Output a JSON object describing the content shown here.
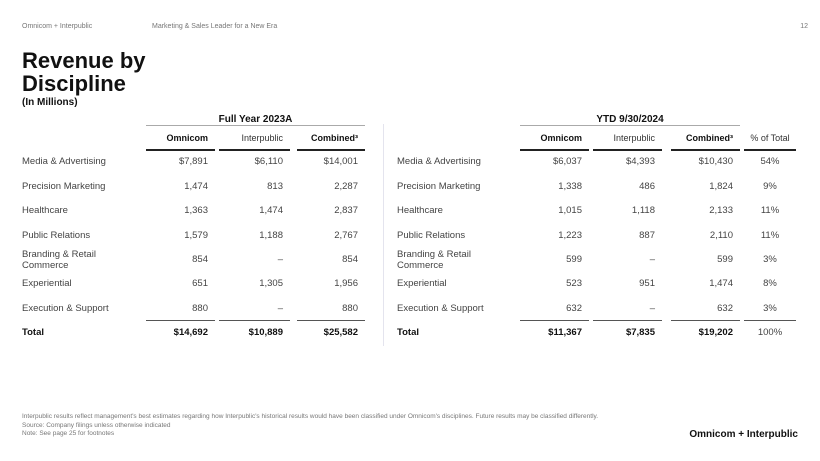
{
  "header": {
    "left": "Omnicom + Interpublic",
    "center": "Marketing & Sales Leader for a New Era",
    "page_number": "12"
  },
  "title": "Revenue by Discipline",
  "subtitle": "(In Millions)",
  "left_table": {
    "group": "Full Year 2023A",
    "columns": [
      "Omnicom",
      "Interpublic",
      "Combined³"
    ],
    "rows": [
      {
        "label": "Media & Advertising",
        "values": [
          "$7,891",
          "$6,110",
          "$14,001"
        ]
      },
      {
        "label": "Precision Marketing",
        "values": [
          "1,474",
          "813",
          "2,287"
        ]
      },
      {
        "label": "Healthcare",
        "values": [
          "1,363",
          "1,474",
          "2,837"
        ]
      },
      {
        "label": "Public Relations",
        "values": [
          "1,579",
          "1,188",
          "2,767"
        ]
      },
      {
        "label": "Branding & Retail Commerce",
        "values": [
          "854",
          "–",
          "854"
        ]
      },
      {
        "label": "Experiential",
        "values": [
          "651",
          "1,305",
          "1,956"
        ]
      },
      {
        "label": "Execution & Support",
        "values": [
          "880",
          "–",
          "880"
        ]
      }
    ],
    "total": {
      "label": "Total",
      "values": [
        "$14,692",
        "$10,889",
        "$25,582"
      ]
    }
  },
  "right_table": {
    "group": "YTD 9/30/2024",
    "columns": [
      "Omnicom",
      "Interpublic",
      "Combined³",
      "% of Total"
    ],
    "rows": [
      {
        "label": "Media & Advertising",
        "values": [
          "$6,037",
          "$4,393",
          "$10,430",
          "54%"
        ]
      },
      {
        "label": "Precision Marketing",
        "values": [
          "1,338",
          "486",
          "1,824",
          "9%"
        ]
      },
      {
        "label": "Healthcare",
        "values": [
          "1,015",
          "1,118",
          "2,133",
          "11%"
        ]
      },
      {
        "label": "Public Relations",
        "values": [
          "1,223",
          "887",
          "2,110",
          "11%"
        ]
      },
      {
        "label": "Branding & Retail Commerce",
        "values": [
          "599",
          "–",
          "599",
          "3%"
        ]
      },
      {
        "label": "Experiential",
        "values": [
          "523",
          "951",
          "1,474",
          "8%"
        ]
      },
      {
        "label": "Execution & Support",
        "values": [
          "632",
          "–",
          "632",
          "3%"
        ]
      }
    ],
    "total": {
      "label": "Total",
      "values": [
        "$11,367",
        "$7,835",
        "$19,202",
        "100%"
      ]
    }
  },
  "footer": {
    "notes": [
      "Interpublic results reflect management's best estimates regarding how Interpublic's historical results would have been classified under Omnicom's disciplines. Future results may be classified differently.",
      "Source: Company filings unless otherwise indicated",
      "Note: See page 25 for footnotes"
    ],
    "logo": "Omnicom + Interpublic"
  }
}
